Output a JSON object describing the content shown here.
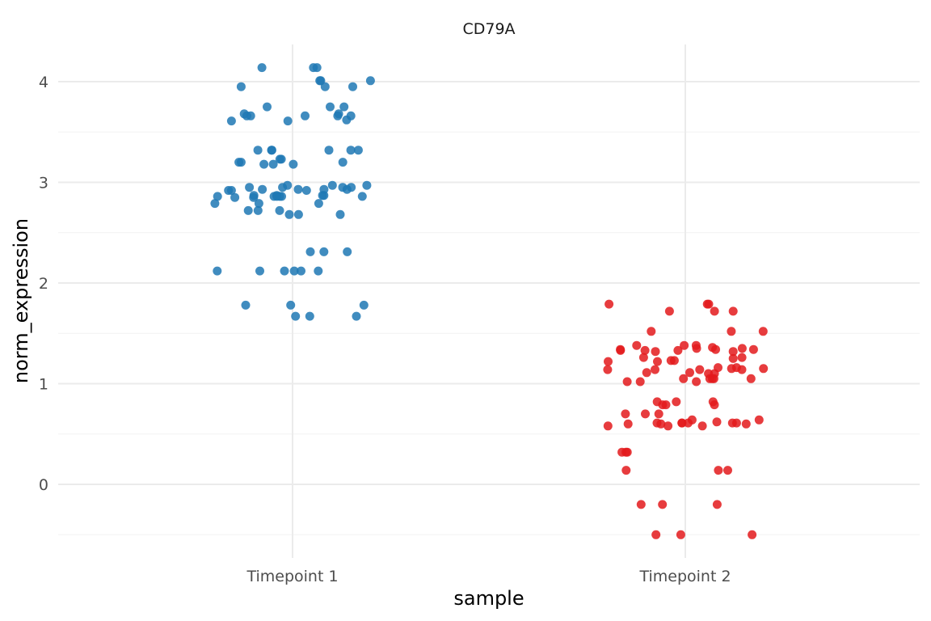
{
  "chart_data": {
    "type": "scatter",
    "title": "CD79A",
    "xlabel": "sample",
    "ylabel": "norm_expression",
    "categories": [
      "Timepoint 1",
      "Timepoint 2"
    ],
    "x_jitter": 0.4,
    "ylim": [
      -0.6,
      4.4
    ],
    "yticks": [
      0,
      1,
      2,
      3,
      4
    ],
    "grid": true,
    "legend": "none",
    "series": [
      {
        "category": "Timepoint 1",
        "color": "#1F78B4",
        "values": [
          4.14,
          4.14,
          4.14,
          4.01,
          4.01,
          4.01,
          3.95,
          3.95,
          3.95,
          3.75,
          3.75,
          3.75,
          3.68,
          3.68,
          3.66,
          3.66,
          3.66,
          3.66,
          3.66,
          3.62,
          3.61,
          3.61,
          3.32,
          3.32,
          3.32,
          3.32,
          3.32,
          3.32,
          3.23,
          3.23,
          3.2,
          3.2,
          3.2,
          3.18,
          3.18,
          3.18,
          2.97,
          2.97,
          2.97,
          2.95,
          2.95,
          2.95,
          2.95,
          2.93,
          2.93,
          2.93,
          2.93,
          2.92,
          2.92,
          2.92,
          2.87,
          2.87,
          2.87,
          2.87,
          2.86,
          2.86,
          2.86,
          2.86,
          2.86,
          2.86,
          2.85,
          2.85,
          2.79,
          2.79,
          2.79,
          2.72,
          2.72,
          2.72,
          2.68,
          2.68,
          2.68,
          2.31,
          2.31,
          2.31,
          2.12,
          2.12,
          2.12,
          2.12,
          2.12,
          2.12,
          1.78,
          1.78,
          1.78,
          1.67,
          1.67,
          1.67
        ]
      },
      {
        "category": "Timepoint 2",
        "color": "#E31A1C",
        "values": [
          1.79,
          1.79,
          1.79,
          1.72,
          1.72,
          1.72,
          1.52,
          1.52,
          1.52,
          1.38,
          1.38,
          1.38,
          1.36,
          1.35,
          1.35,
          1.34,
          1.34,
          1.34,
          1.33,
          1.33,
          1.33,
          1.32,
          1.32,
          1.26,
          1.26,
          1.25,
          1.23,
          1.23,
          1.22,
          1.22,
          1.16,
          1.16,
          1.15,
          1.15,
          1.14,
          1.14,
          1.14,
          1.14,
          1.11,
          1.11,
          1.1,
          1.1,
          1.05,
          1.05,
          1.05,
          1.05,
          1.05,
          1.02,
          1.02,
          1.02,
          0.82,
          0.82,
          0.82,
          0.79,
          0.79,
          0.79,
          0.7,
          0.7,
          0.7,
          0.64,
          0.64,
          0.62,
          0.61,
          0.61,
          0.61,
          0.61,
          0.61,
          0.61,
          0.6,
          0.6,
          0.6,
          0.58,
          0.58,
          0.58,
          0.32,
          0.32,
          0.32,
          0.14,
          0.14,
          0.14,
          -0.2,
          -0.2,
          -0.2,
          -0.5,
          -0.5,
          -0.5
        ]
      }
    ]
  }
}
